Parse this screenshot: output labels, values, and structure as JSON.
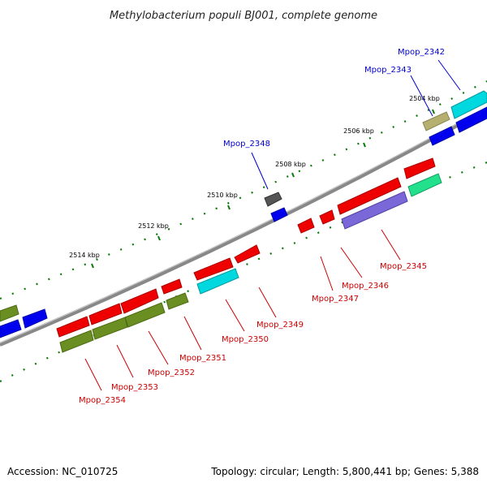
{
  "title": "Methylobacterium populi BJ001, complete genome",
  "footer": {
    "accession": "Accession: NC_010725",
    "summary": "Topology: circular; Length: 5,800,441 bp; Genes: 5,388"
  },
  "kbp_ticks": [
    "2504 kbp",
    "2506 kbp",
    "2508 kbp",
    "2510 kbp",
    "2512 kbp",
    "2514 kbp"
  ],
  "gene_labels": {
    "outer": [
      "Mpop_2342",
      "Mpop_2343",
      "Mpop_2348"
    ],
    "inner": [
      "Mpop_2345",
      "Mpop_2346",
      "Mpop_2347",
      "Mpop_2349",
      "Mpop_2350",
      "Mpop_2351",
      "Mpop_2352",
      "Mpop_2353",
      "Mpop_2354"
    ]
  },
  "colors": {
    "red": "#ee0000",
    "olive": "#6b8e23",
    "blue": "#0000ee",
    "cyan": "#00d8e0",
    "khaki": "#b5b070",
    "gray": "#555555",
    "green": "#22e08c",
    "purple": "#7b68d8",
    "backbone": "#888888",
    "tick": "#0a7a0a"
  }
}
